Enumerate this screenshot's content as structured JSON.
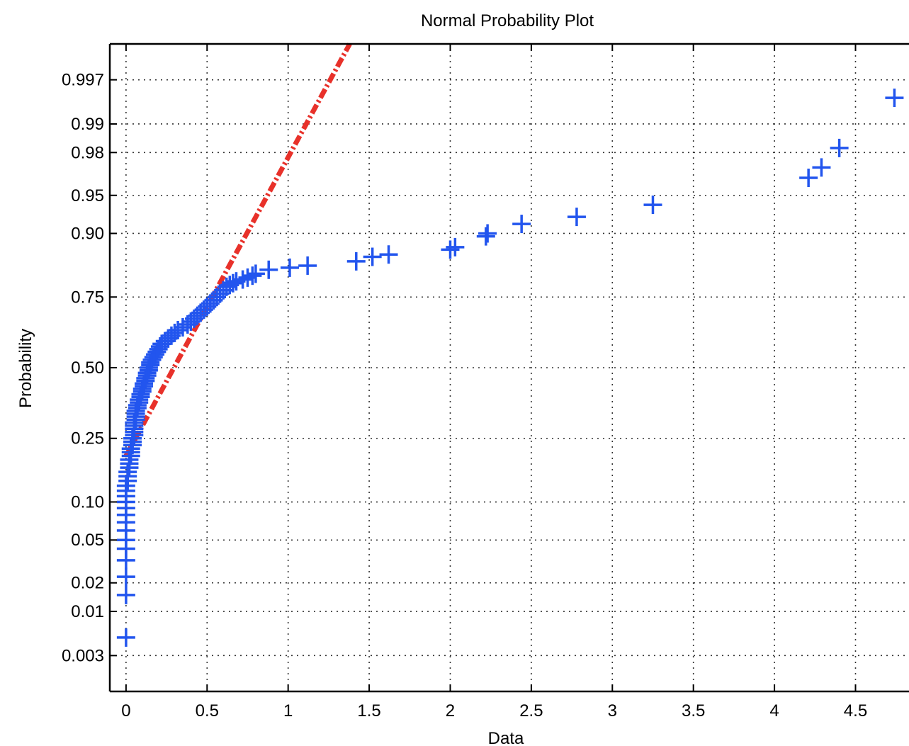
{
  "chart_data": {
    "type": "scatter",
    "title": "Normal Probability Plot",
    "xlabel": "Data",
    "ylabel": "Probability",
    "xlim": [
      -0.1,
      4.83
    ],
    "x_ticks": [
      "0",
      "0.5",
      "1",
      "1.5",
      "2",
      "2.5",
      "3",
      "3.5",
      "4",
      "4.5"
    ],
    "x_tick_values": [
      0,
      0.5,
      1,
      1.5,
      2,
      2.5,
      3,
      3.5,
      4,
      4.5
    ],
    "y_scale": "normal-probability",
    "y_ticks": [
      "0.003",
      "0.01",
      "0.02",
      "0.05",
      "0.10",
      "0.25",
      "0.50",
      "0.75",
      "0.90",
      "0.95",
      "0.98",
      "0.99",
      "0.997"
    ],
    "y_tick_values": [
      0.003,
      0.01,
      0.02,
      0.05,
      0.1,
      0.25,
      0.5,
      0.75,
      0.9,
      0.95,
      0.98,
      0.99,
      0.997
    ],
    "grid": true,
    "marker": "+",
    "colors": {
      "data": "#2255ee",
      "fit": "#e8312a"
    },
    "points": [
      [
        0.0,
        0.005
      ],
      [
        0.0,
        0.015
      ],
      [
        0.0,
        0.023
      ],
      [
        0.0,
        0.033
      ],
      [
        0.0,
        0.042
      ],
      [
        0.0,
        0.05
      ],
      [
        0.0,
        0.06
      ],
      [
        0.0,
        0.07
      ],
      [
        0.0,
        0.08
      ],
      [
        0.0,
        0.09
      ],
      [
        0.0,
        0.1
      ],
      [
        0.0,
        0.11
      ],
      [
        0.0,
        0.12
      ],
      [
        0.0,
        0.13
      ],
      [
        0.01,
        0.14
      ],
      [
        0.01,
        0.15
      ],
      [
        0.01,
        0.16
      ],
      [
        0.02,
        0.17
      ],
      [
        0.02,
        0.18
      ],
      [
        0.02,
        0.19
      ],
      [
        0.03,
        0.2
      ],
      [
        0.03,
        0.21
      ],
      [
        0.03,
        0.22
      ],
      [
        0.04,
        0.23
      ],
      [
        0.04,
        0.24
      ],
      [
        0.04,
        0.25
      ],
      [
        0.05,
        0.26
      ],
      [
        0.05,
        0.27
      ],
      [
        0.05,
        0.28
      ],
      [
        0.05,
        0.29
      ],
      [
        0.05,
        0.3
      ],
      [
        0.06,
        0.31
      ],
      [
        0.06,
        0.32
      ],
      [
        0.06,
        0.33
      ],
      [
        0.06,
        0.34
      ],
      [
        0.07,
        0.35
      ],
      [
        0.07,
        0.36
      ],
      [
        0.08,
        0.37
      ],
      [
        0.08,
        0.38
      ],
      [
        0.09,
        0.39
      ],
      [
        0.09,
        0.4
      ],
      [
        0.1,
        0.41
      ],
      [
        0.1,
        0.42
      ],
      [
        0.11,
        0.43
      ],
      [
        0.11,
        0.44
      ],
      [
        0.12,
        0.45
      ],
      [
        0.12,
        0.46
      ],
      [
        0.13,
        0.47
      ],
      [
        0.13,
        0.48
      ],
      [
        0.14,
        0.49
      ],
      [
        0.14,
        0.5
      ],
      [
        0.15,
        0.51
      ],
      [
        0.15,
        0.52
      ],
      [
        0.16,
        0.53
      ],
      [
        0.17,
        0.54
      ],
      [
        0.18,
        0.55
      ],
      [
        0.19,
        0.56
      ],
      [
        0.2,
        0.57
      ],
      [
        0.21,
        0.58
      ],
      [
        0.22,
        0.59
      ],
      [
        0.24,
        0.6
      ],
      [
        0.26,
        0.61
      ],
      [
        0.28,
        0.62
      ],
      [
        0.3,
        0.63
      ],
      [
        0.32,
        0.64
      ],
      [
        0.35,
        0.65
      ],
      [
        0.38,
        0.66
      ],
      [
        0.4,
        0.67
      ],
      [
        0.42,
        0.68
      ],
      [
        0.44,
        0.69
      ],
      [
        0.46,
        0.7
      ],
      [
        0.48,
        0.71
      ],
      [
        0.5,
        0.72
      ],
      [
        0.52,
        0.73
      ],
      [
        0.54,
        0.74
      ],
      [
        0.56,
        0.75
      ],
      [
        0.58,
        0.76
      ],
      [
        0.6,
        0.77
      ],
      [
        0.62,
        0.78
      ],
      [
        0.64,
        0.785
      ],
      [
        0.66,
        0.79
      ],
      [
        0.68,
        0.795
      ],
      [
        0.72,
        0.8
      ],
      [
        0.75,
        0.805
      ],
      [
        0.78,
        0.81
      ],
      [
        0.8,
        0.815
      ],
      [
        0.88,
        0.825
      ],
      [
        1.01,
        0.83
      ],
      [
        1.12,
        0.835
      ],
      [
        1.42,
        0.845
      ],
      [
        1.52,
        0.855
      ],
      [
        1.62,
        0.86
      ],
      [
        2.0,
        0.87
      ],
      [
        2.03,
        0.875
      ],
      [
        2.22,
        0.895
      ],
      [
        2.23,
        0.9
      ],
      [
        2.44,
        0.915
      ],
      [
        2.78,
        0.925
      ],
      [
        3.25,
        0.94
      ],
      [
        4.21,
        0.965
      ],
      [
        4.29,
        0.972
      ],
      [
        4.4,
        0.982
      ],
      [
        4.74,
        0.995
      ]
    ],
    "fit_line": {
      "x": [
        0.0,
        1.38
      ],
      "p": [
        0.2,
        0.999
      ]
    }
  }
}
